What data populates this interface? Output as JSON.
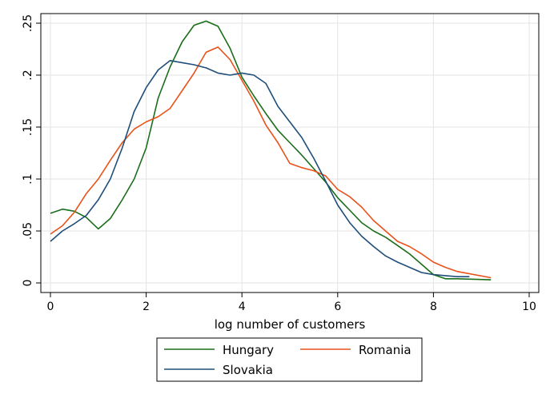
{
  "chart_data": {
    "type": "line",
    "title": "",
    "xlabel": "log number of customers",
    "ylabel": "",
    "xlim": [
      0,
      10
    ],
    "ylim": [
      0,
      0.25
    ],
    "x_ticks": [
      0,
      2,
      4,
      6,
      8,
      10
    ],
    "x_tick_labels": [
      "0",
      "2",
      "4",
      "6",
      "8",
      "10"
    ],
    "y_ticks": [
      0,
      0.05,
      0.1,
      0.15,
      0.2,
      0.25
    ],
    "y_tick_labels": [
      "0",
      ".05",
      ".1",
      ".15",
      ".2",
      ".25"
    ],
    "grid": true,
    "legend_position": "bottom",
    "series": [
      {
        "name": "Hungary",
        "color": "#1a6e1a",
        "x": [
          0,
          0.25,
          0.5,
          0.75,
          1.0,
          1.25,
          1.5,
          1.75,
          2.0,
          2.25,
          2.5,
          2.75,
          3.0,
          3.25,
          3.5,
          3.75,
          4.0,
          4.25,
          4.5,
          4.75,
          5.0,
          5.25,
          5.5,
          5.75,
          6.0,
          6.25,
          6.5,
          6.75,
          7.0,
          7.25,
          7.5,
          7.75,
          8.0,
          8.25,
          8.5,
          9.2
        ],
        "y": [
          0.067,
          0.071,
          0.069,
          0.063,
          0.052,
          0.062,
          0.08,
          0.1,
          0.13,
          0.178,
          0.208,
          0.232,
          0.248,
          0.252,
          0.247,
          0.226,
          0.198,
          0.18,
          0.163,
          0.147,
          0.135,
          0.123,
          0.11,
          0.097,
          0.082,
          0.07,
          0.058,
          0.05,
          0.044,
          0.036,
          0.028,
          0.018,
          0.008,
          0.004,
          0.004,
          0.003
        ]
      },
      {
        "name": "Romania",
        "color": "#e8521a",
        "x": [
          0,
          0.25,
          0.5,
          0.75,
          1.0,
          1.25,
          1.5,
          1.75,
          2.0,
          2.25,
          2.5,
          2.75,
          3.0,
          3.25,
          3.5,
          3.75,
          4.0,
          4.25,
          4.5,
          4.75,
          5.0,
          5.25,
          5.5,
          5.75,
          6.0,
          6.25,
          6.5,
          6.75,
          7.0,
          7.25,
          7.5,
          7.75,
          8.0,
          8.25,
          8.5,
          9.2
        ],
        "y": [
          0.047,
          0.055,
          0.068,
          0.086,
          0.1,
          0.118,
          0.135,
          0.148,
          0.155,
          0.16,
          0.168,
          0.185,
          0.202,
          0.222,
          0.227,
          0.215,
          0.195,
          0.175,
          0.152,
          0.135,
          0.115,
          0.111,
          0.108,
          0.103,
          0.09,
          0.083,
          0.073,
          0.06,
          0.05,
          0.04,
          0.035,
          0.028,
          0.02,
          0.015,
          0.011,
          0.005
        ]
      },
      {
        "name": "Slovakia",
        "color": "#1f4e79",
        "x": [
          0,
          0.25,
          0.5,
          0.75,
          1.0,
          1.25,
          1.5,
          1.75,
          2.0,
          2.25,
          2.5,
          2.75,
          3.0,
          3.25,
          3.5,
          3.75,
          4.0,
          4.25,
          4.5,
          4.75,
          5.0,
          5.25,
          5.5,
          5.75,
          6.0,
          6.25,
          6.5,
          6.75,
          7.0,
          7.25,
          7.5,
          7.75,
          8.0,
          8.25,
          8.5,
          8.75
        ],
        "y": [
          0.04,
          0.05,
          0.057,
          0.065,
          0.08,
          0.1,
          0.13,
          0.165,
          0.188,
          0.205,
          0.214,
          0.212,
          0.21,
          0.207,
          0.202,
          0.2,
          0.202,
          0.2,
          0.192,
          0.17,
          0.155,
          0.14,
          0.12,
          0.098,
          0.075,
          0.058,
          0.045,
          0.035,
          0.026,
          0.02,
          0.015,
          0.01,
          0.008,
          0.007,
          0.006,
          0.006
        ]
      }
    ]
  }
}
